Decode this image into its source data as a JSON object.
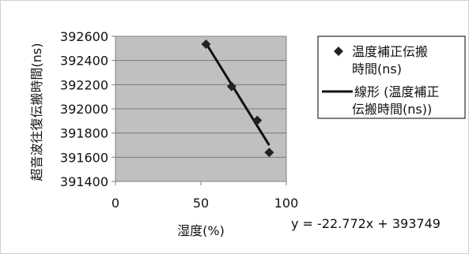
{
  "chart_data": {
    "type": "scatter",
    "xlabel": "湿度(%)",
    "ylabel": "超音波往復伝搬時間(ns)",
    "xlim": [
      0,
      100
    ],
    "ylim": [
      391400,
      392600
    ],
    "x_ticks": [
      0,
      50,
      100
    ],
    "y_ticks": [
      391400,
      391600,
      391800,
      392000,
      392200,
      392400,
      392600
    ],
    "x_tick_labels": [
      "0",
      "50",
      "100"
    ],
    "y_tick_labels": [
      "391400",
      "391600",
      "391800",
      "392000",
      "392200",
      "392400",
      "392600"
    ],
    "grid": true,
    "legend_position": "right",
    "series": [
      {
        "name": "温度補正伝搬時間(ns)",
        "marker": "diamond",
        "color": "#222222",
        "x": [
          53,
          68,
          83,
          90
        ],
        "y": [
          392535,
          392185,
          391905,
          391640
        ]
      }
    ],
    "trendline": {
      "name": "線形 (温度補正伝搬時間(ns))",
      "slope": -22.772,
      "intercept": 393749,
      "x_range": [
        53,
        90
      ],
      "color": "#111111"
    },
    "legend": {
      "marker_entry_lines": [
        "温度補正伝搬",
        "時間(ns)"
      ],
      "line_entry_lines": [
        "線形 (温度補正",
        "伝搬時間(ns))"
      ]
    },
    "equation_label": "y = -22.772x + 393749",
    "plot_background": "#c0c0c0"
  }
}
